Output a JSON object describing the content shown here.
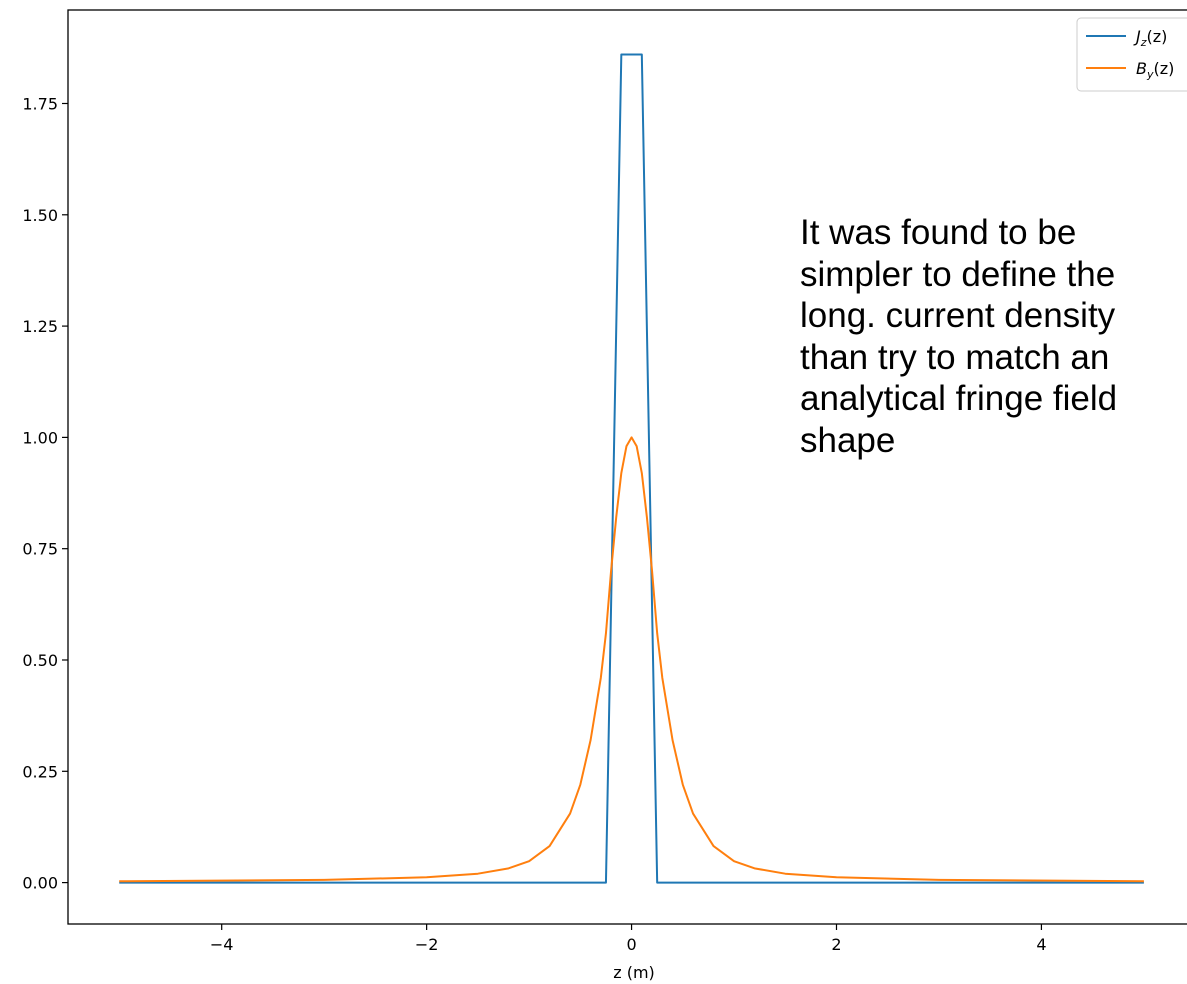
{
  "chart_data": {
    "type": "line",
    "title": "",
    "xlabel": "z (m)",
    "ylabel": "",
    "xlim": [
      -5.5,
      5.45
    ],
    "ylim": [
      -0.093,
      1.96
    ],
    "xticks": [
      -4,
      -2,
      0,
      2,
      4
    ],
    "xtick_labels": [
      "−4",
      "−2",
      "0",
      "2",
      "4"
    ],
    "yticks": [
      0.0,
      0.25,
      0.5,
      0.75,
      1.0,
      1.25,
      1.5,
      1.75
    ],
    "ytick_labels": [
      "0.00",
      "0.25",
      "0.50",
      "0.75",
      "1.00",
      "1.25",
      "1.50",
      "1.75"
    ],
    "grid": false,
    "legend_position": "top-right",
    "series": [
      {
        "name": "J_z(z)",
        "color": "#1f77b4",
        "x": [
          -5.0,
          -0.25,
          -0.1,
          0.1,
          0.25,
          5.0
        ],
        "y": [
          0.0,
          0.0,
          1.86,
          1.86,
          0.0,
          0.0
        ]
      },
      {
        "name": "B_y(z)",
        "color": "#ff7f0e",
        "x": [
          -5.0,
          -3.0,
          -2.0,
          -1.5,
          -1.2,
          -1.0,
          -0.8,
          -0.6,
          -0.5,
          -0.4,
          -0.3,
          -0.25,
          -0.2,
          -0.15,
          -0.1,
          -0.05,
          0.0,
          0.05,
          0.1,
          0.15,
          0.2,
          0.25,
          0.3,
          0.4,
          0.5,
          0.6,
          0.8,
          1.0,
          1.2,
          1.5,
          2.0,
          3.0,
          5.0
        ],
        "y": [
          0.003,
          0.006,
          0.012,
          0.02,
          0.032,
          0.048,
          0.082,
          0.155,
          0.22,
          0.32,
          0.46,
          0.56,
          0.7,
          0.82,
          0.92,
          0.98,
          1.0,
          0.98,
          0.92,
          0.82,
          0.7,
          0.56,
          0.46,
          0.32,
          0.22,
          0.155,
          0.082,
          0.048,
          0.032,
          0.02,
          0.012,
          0.006,
          0.003
        ]
      }
    ]
  },
  "legend": {
    "entries": [
      {
        "label": "J_z(z)",
        "main": "J",
        "sub": "z",
        "tail": "(z)"
      },
      {
        "label": "B_y(z)",
        "main": "B",
        "sub": "y",
        "tail": "(z)"
      }
    ]
  },
  "annotation": {
    "lines": [
      "It was found to be",
      "simpler to define the",
      "long. current density",
      "than try to match an",
      "analytical fringe field",
      "shape"
    ]
  }
}
